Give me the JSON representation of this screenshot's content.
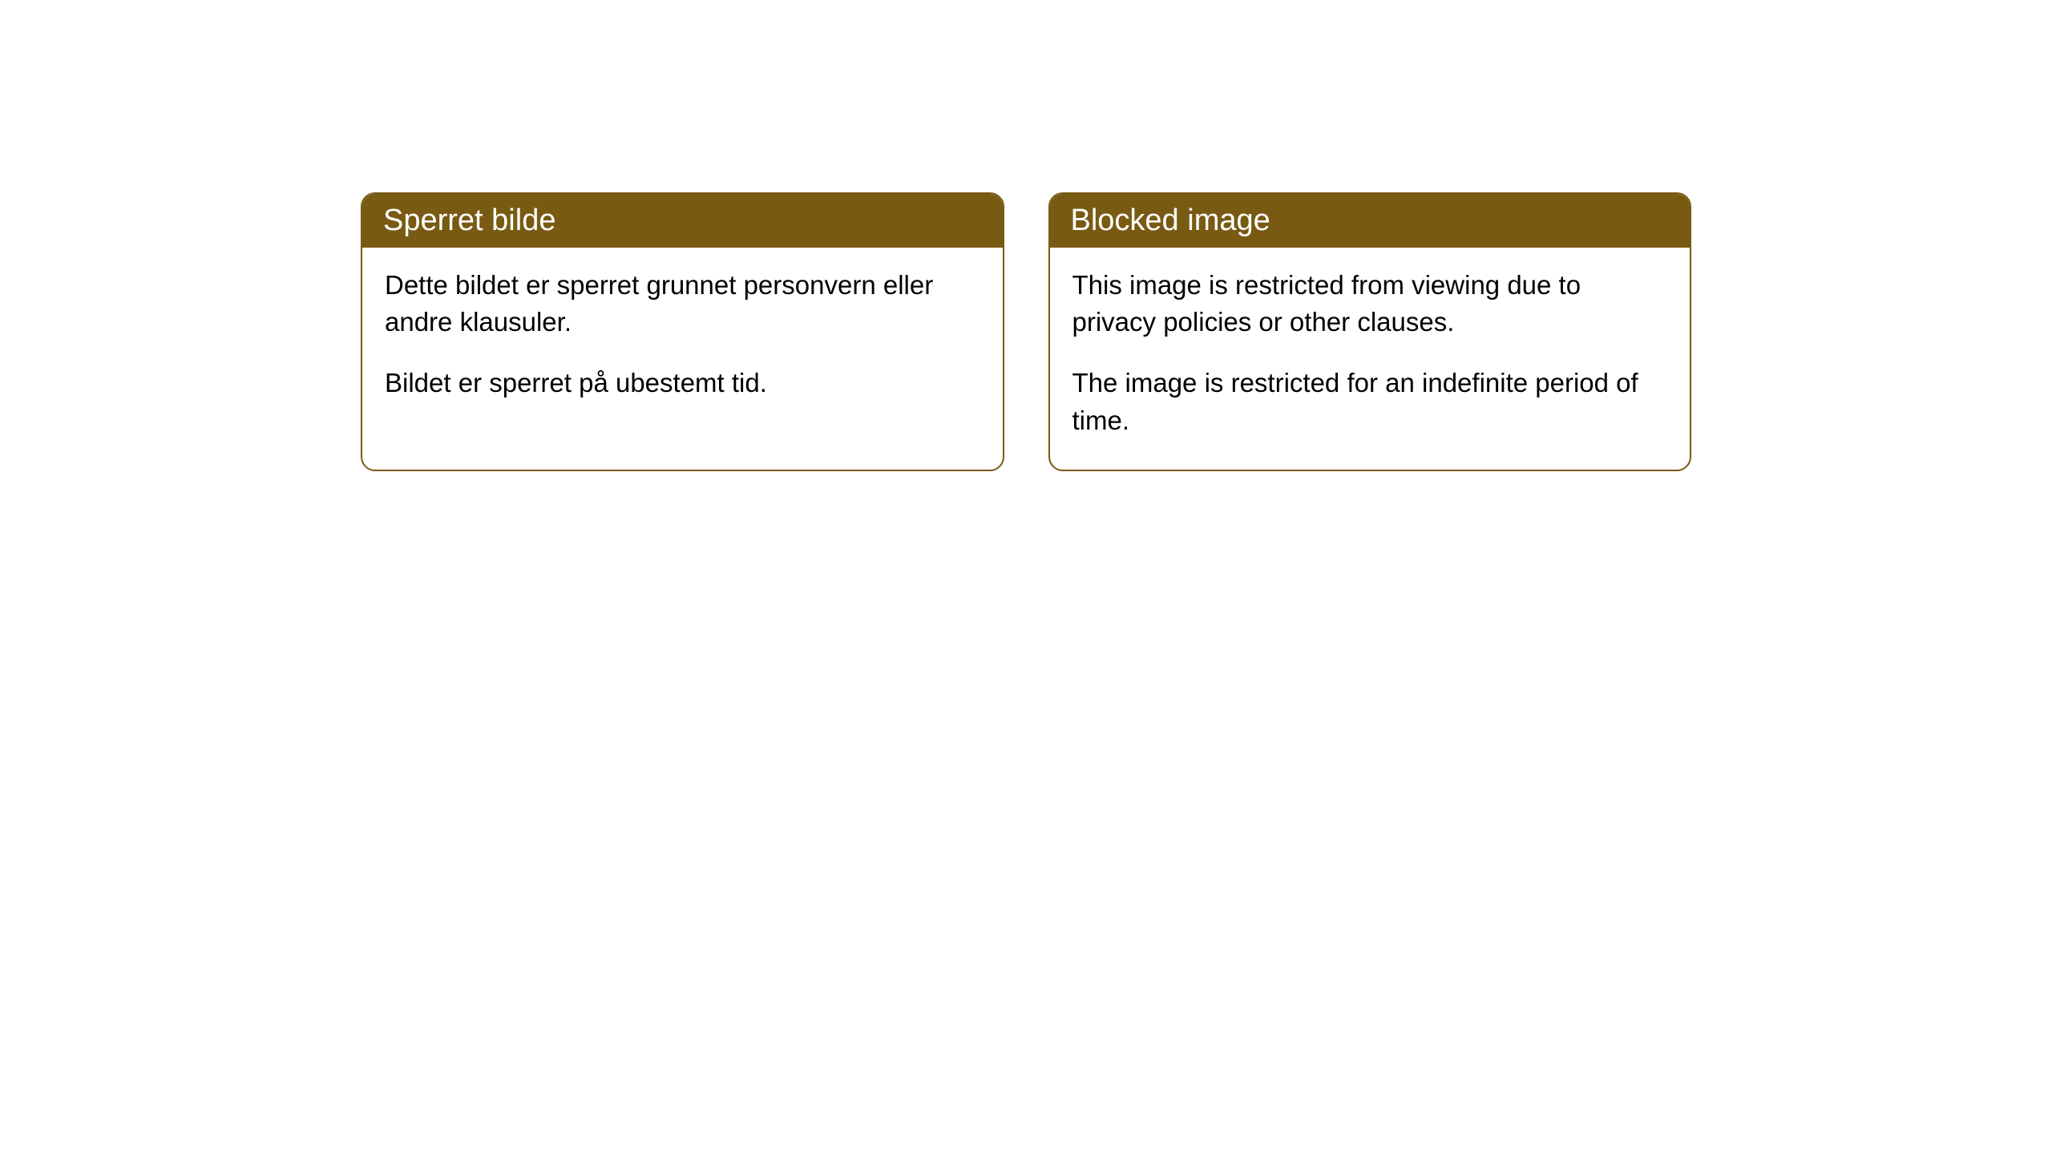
{
  "cards": [
    {
      "title": "Sperret bilde",
      "paragraph1": "Dette bildet er sperret grunnet personvern eller andre klausuler.",
      "paragraph2": "Bildet er sperret på ubestemt tid."
    },
    {
      "title": "Blocked image",
      "paragraph1": "This image is restricted from viewing due to privacy policies or other clauses.",
      "paragraph2": "The image is restricted for an indefinite period of time."
    }
  ],
  "styling": {
    "header_background_color": "#785a12",
    "header_text_color": "#ffffff",
    "border_color": "#785a12",
    "body_background_color": "#ffffff",
    "body_text_color": "#000000",
    "border_radius": 18,
    "header_fontsize": 38,
    "body_fontsize": 33
  }
}
